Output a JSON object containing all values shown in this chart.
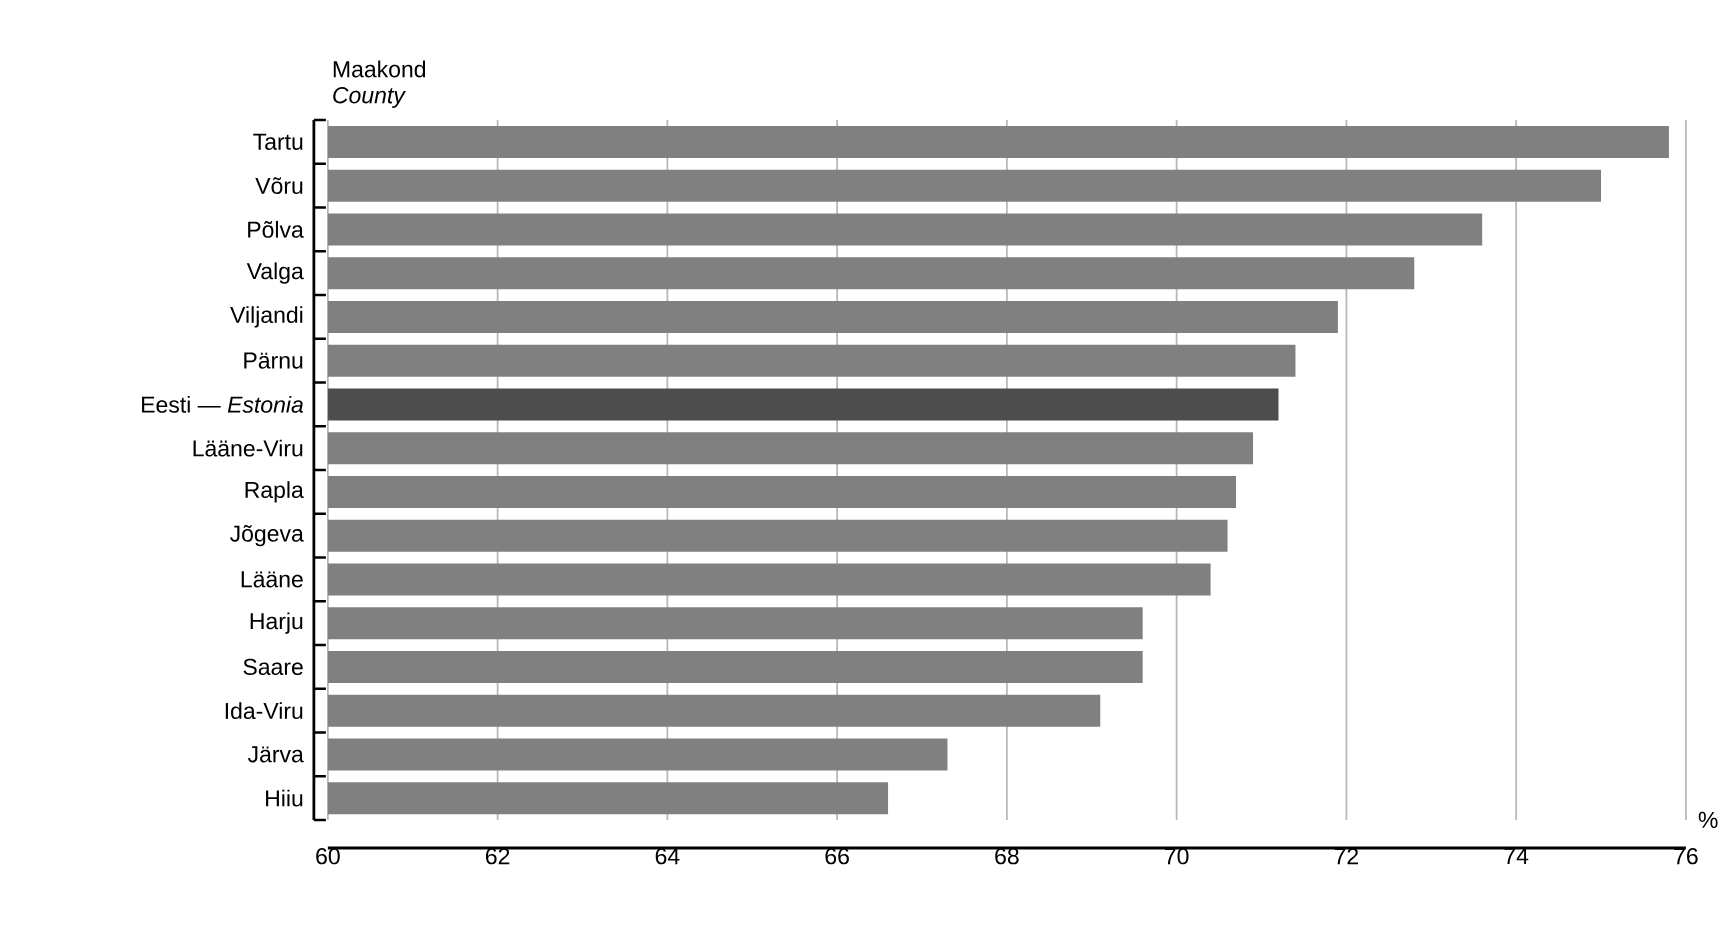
{
  "chart_data": {
    "type": "bar",
    "orientation": "horizontal",
    "ylabel": "Maakond *County*",
    "xlabel": "%",
    "categories": [
      "Tartu",
      "Võru",
      "Põlva",
      "Valga",
      "Viljandi",
      "Pärnu",
      "Eesti — *Estonia*",
      "Lääne-Viru",
      "Rapla",
      "Jõgeva",
      "Lääne",
      "Harju",
      "Saare",
      "Ida-Viru",
      "Järva",
      "Hiiu"
    ],
    "values": [
      75.8,
      75.0,
      73.6,
      72.8,
      71.9,
      71.4,
      71.2,
      70.9,
      70.7,
      70.6,
      70.4,
      69.6,
      69.6,
      69.1,
      67.3,
      66.6
    ],
    "colors": [
      "#808080",
      "#808080",
      "#808080",
      "#808080",
      "#808080",
      "#808080",
      "#4d4d4d",
      "#808080",
      "#808080",
      "#808080",
      "#808080",
      "#808080",
      "#808080",
      "#808080",
      "#808080",
      "#808080"
    ],
    "xlim": [
      60,
      76
    ],
    "xticks": [
      60,
      62,
      64,
      66,
      68,
      70,
      72,
      74,
      76
    ],
    "grid": "x"
  }
}
